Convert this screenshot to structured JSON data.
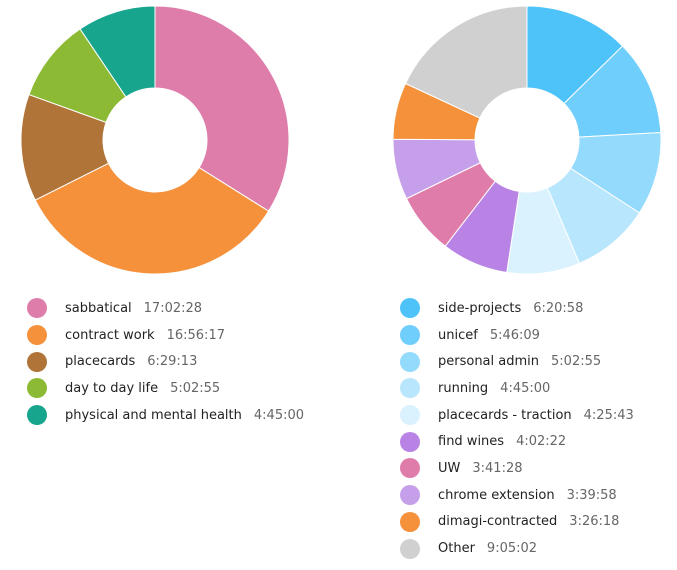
{
  "chart_data": [
    {
      "type": "pie",
      "title": "",
      "donut": true,
      "categories": [
        "sabbatical",
        "contract work",
        "placecards",
        "day to day life",
        "physical and mental health"
      ],
      "durations": [
        "17:02:28",
        "16:56:17",
        "6:29:13",
        "5:02:55",
        "4:45:00"
      ],
      "values": [
        61348,
        60977,
        23353,
        18175,
        17100
      ],
      "colors": [
        "#de7caa",
        "#f5913a",
        "#b07438",
        "#8cba34",
        "#17a58e"
      ]
    },
    {
      "type": "pie",
      "title": "",
      "donut": true,
      "categories": [
        "side-projects",
        "unicef",
        "personal admin",
        "running",
        "placecards - traction",
        "find wines",
        "UW",
        "chrome extension",
        "dimagi-contracted",
        "Other"
      ],
      "durations": [
        "6:20:58",
        "5:46:09",
        "5:02:55",
        "4:45:00",
        "4:25:43",
        "4:02:22",
        "3:41:28",
        "3:39:58",
        "3:26:18",
        "9:05:02"
      ],
      "values": [
        22858,
        20769,
        18175,
        17100,
        15943,
        14542,
        13288,
        13198,
        12378,
        32702
      ],
      "colors": [
        "#4dc3fa",
        "#6fcefb",
        "#94dafc",
        "#b7e6fd",
        "#daf2fe",
        "#b983e5",
        "#df7ca9",
        "#c69fea",
        "#f5913a",
        "#d0d0d0"
      ]
    }
  ]
}
